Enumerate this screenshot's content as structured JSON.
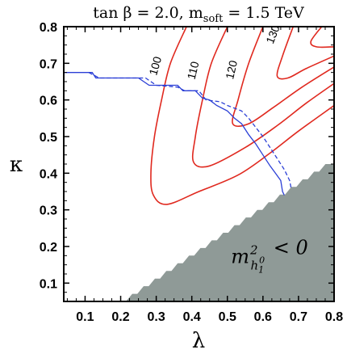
{
  "chart_data": {
    "type": "contour",
    "title": "tan β = 2.0,  m_soft = 1.5 TeV",
    "xlabel": "λ",
    "ylabel": "κ",
    "xlim": [
      0.04,
      0.8
    ],
    "ylim": [
      0.05,
      0.8
    ],
    "xticks": [
      "0.1",
      "0.2",
      "0.3",
      "0.4",
      "0.5",
      "0.6",
      "0.7",
      "0.8"
    ],
    "yticks": [
      "0.1",
      "0.2",
      "0.3",
      "0.4",
      "0.5",
      "0.6",
      "0.7",
      "0.8"
    ],
    "colors": {
      "contour": "#e0291f",
      "boundary": "#2b3fd6",
      "excluded": "#8f9a97"
    },
    "contours": [
      {
        "level": "100",
        "points": [
          [
            0.385,
            0.8
          ],
          [
            0.34,
            0.7
          ],
          [
            0.315,
            0.6
          ],
          [
            0.295,
            0.5
          ],
          [
            0.285,
            0.4
          ],
          [
            0.292,
            0.34
          ],
          [
            0.33,
            0.315
          ],
          [
            0.42,
            0.35
          ],
          [
            0.53,
            0.395
          ],
          [
            0.62,
            0.455
          ],
          [
            0.7,
            0.515
          ],
          [
            0.8,
            0.585
          ]
        ]
      },
      {
        "level": "110",
        "points": [
          [
            0.5,
            0.8
          ],
          [
            0.455,
            0.7
          ],
          [
            0.43,
            0.6
          ],
          [
            0.41,
            0.5
          ],
          [
            0.405,
            0.43
          ],
          [
            0.45,
            0.42
          ],
          [
            0.55,
            0.47
          ],
          [
            0.64,
            0.53
          ],
          [
            0.72,
            0.59
          ],
          [
            0.8,
            0.645
          ]
        ]
      },
      {
        "level": "120",
        "points": [
          [
            0.6,
            0.8
          ],
          [
            0.56,
            0.7
          ],
          [
            0.53,
            0.6
          ],
          [
            0.515,
            0.535
          ],
          [
            0.56,
            0.535
          ],
          [
            0.63,
            0.58
          ],
          [
            0.71,
            0.635
          ],
          [
            0.8,
            0.69
          ]
        ]
      },
      {
        "level": "130",
        "points": [
          [
            0.685,
            0.8
          ],
          [
            0.655,
            0.72
          ],
          [
            0.64,
            0.665
          ],
          [
            0.67,
            0.66
          ],
          [
            0.72,
            0.685
          ],
          [
            0.8,
            0.72
          ]
        ]
      },
      {
        "level": "",
        "points": [
          [
            0.765,
            0.8
          ],
          [
            0.735,
            0.76
          ],
          [
            0.75,
            0.745
          ],
          [
            0.8,
            0.745
          ]
        ]
      }
    ],
    "contour_labels": [
      {
        "text": "100",
        "x": 0.308,
        "y": 0.69,
        "angle": -74
      },
      {
        "text": "110",
        "x": 0.414,
        "y": 0.678,
        "angle": -76
      },
      {
        "text": "120",
        "x": 0.522,
        "y": 0.68,
        "angle": -77
      },
      {
        "text": "130",
        "x": 0.638,
        "y": 0.775,
        "angle": -68
      }
    ],
    "boundary_solid": [
      [
        0.04,
        0.675
      ],
      [
        0.12,
        0.675
      ],
      [
        0.13,
        0.66
      ],
      [
        0.25,
        0.66
      ],
      [
        0.28,
        0.64
      ],
      [
        0.36,
        0.64
      ],
      [
        0.375,
        0.625
      ],
      [
        0.41,
        0.625
      ],
      [
        0.43,
        0.605
      ],
      [
        0.45,
        0.6
      ],
      [
        0.47,
        0.585
      ],
      [
        0.5,
        0.57
      ],
      [
        0.52,
        0.55
      ],
      [
        0.54,
        0.535
      ],
      [
        0.56,
        0.505
      ],
      [
        0.58,
        0.48
      ],
      [
        0.6,
        0.45
      ],
      [
        0.62,
        0.42
      ],
      [
        0.635,
        0.4
      ],
      [
        0.65,
        0.38
      ],
      [
        0.655,
        0.35
      ],
      [
        0.66,
        0.34
      ]
    ],
    "boundary_dashed": [
      [
        0.11,
        0.675
      ],
      [
        0.14,
        0.66
      ],
      [
        0.27,
        0.66
      ],
      [
        0.3,
        0.64
      ],
      [
        0.36,
        0.635
      ],
      [
        0.38,
        0.625
      ],
      [
        0.42,
        0.625
      ],
      [
        0.44,
        0.6
      ],
      [
        0.48,
        0.595
      ],
      [
        0.5,
        0.585
      ],
      [
        0.54,
        0.57
      ],
      [
        0.56,
        0.55
      ],
      [
        0.58,
        0.525
      ],
      [
        0.6,
        0.5
      ],
      [
        0.62,
        0.47
      ],
      [
        0.64,
        0.44
      ],
      [
        0.66,
        0.41
      ],
      [
        0.675,
        0.38
      ],
      [
        0.68,
        0.355
      ]
    ],
    "excluded_region": {
      "label": "m²_{h₁⁰} < 0",
      "label_main": "m",
      "label_sup": "2",
      "label_sub": "h",
      "label_subsub": "1",
      "label_subsup": "0",
      "label_rel": "< 0",
      "edge": [
        [
          0.215,
          0.05
        ],
        [
          0.79,
          0.425
        ],
        [
          0.8,
          0.425
        ]
      ]
    }
  }
}
